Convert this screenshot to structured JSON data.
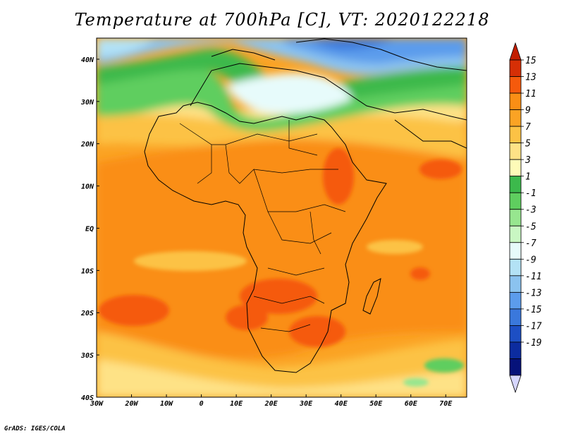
{
  "title": "Temperature at 700hPa [C], VT: 2020122218",
  "footer": "GrADS: IGES/COLA",
  "map": {
    "lon_range": [
      -30,
      76
    ],
    "lat_range": [
      -40,
      45
    ],
    "x_ticks": [
      {
        "lon": -30,
        "label": "30W"
      },
      {
        "lon": -20,
        "label": "20W"
      },
      {
        "lon": -10,
        "label": "10W"
      },
      {
        "lon": 0,
        "label": "0"
      },
      {
        "lon": 10,
        "label": "10E"
      },
      {
        "lon": 20,
        "label": "20E"
      },
      {
        "lon": 30,
        "label": "30E"
      },
      {
        "lon": 40,
        "label": "40E"
      },
      {
        "lon": 50,
        "label": "50E"
      },
      {
        "lon": 60,
        "label": "60E"
      },
      {
        "lon": 70,
        "label": "70E"
      }
    ],
    "y_ticks": [
      {
        "lat": 40,
        "label": "40N"
      },
      {
        "lat": 30,
        "label": "30N"
      },
      {
        "lat": 20,
        "label": "20N"
      },
      {
        "lat": 10,
        "label": "10N"
      },
      {
        "lat": 0,
        "label": "EQ"
      },
      {
        "lat": -10,
        "label": "10S"
      },
      {
        "lat": -20,
        "label": "20S"
      },
      {
        "lat": -30,
        "label": "30S"
      },
      {
        "lat": -40,
        "label": "40S"
      }
    ]
  },
  "colorbar": {
    "labels": [
      "15",
      "13",
      "11",
      "9",
      "7",
      "5",
      "3",
      "1",
      "-1",
      "-3",
      "-5",
      "-7",
      "-9",
      "-11",
      "-13",
      "-15",
      "-17",
      "-19"
    ],
    "colors": [
      "#d62f06",
      "#f55a0c",
      "#fa8e15",
      "#fba324",
      "#fcc245",
      "#fee286",
      "#fefbb8",
      "#3cb94c",
      "#5fce5f",
      "#97e68f",
      "#c9f7c3",
      "#e7fbfb",
      "#b3e2f5",
      "#8bc3ef",
      "#5c9cec",
      "#3a78dc",
      "#1d4fc4",
      "#0c2c9f",
      "#06127a"
    ],
    "top_arrow_color": "#c21d00",
    "bottom_arrow_color": "#d6d6ff"
  }
}
